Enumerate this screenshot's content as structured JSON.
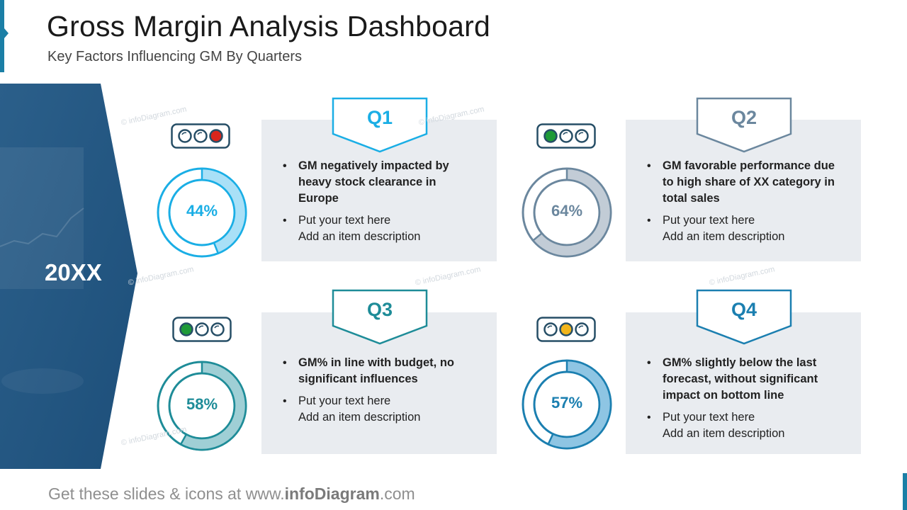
{
  "header": {
    "title": "Gross Margin Analysis Dashboard",
    "subtitle": "Key Factors Influencing  GM By Quarters"
  },
  "left_panel": {
    "year": "20XX"
  },
  "quarters": [
    {
      "tab": "Q1",
      "percent": 44,
      "percent_label": "44%",
      "color": "#1aaee5",
      "light_color": "#a9e0f7",
      "lights": [
        "off",
        "off",
        "red"
      ],
      "bullet_main": "GM negatively impacted by heavy stock clearance in Europe",
      "bullet_text": "Put your text here",
      "bullet_desc": "Add an item description"
    },
    {
      "tab": "Q2",
      "percent": 64,
      "percent_label": "64%",
      "color": "#6b879e",
      "light_color": "#c2ccd6",
      "lights": [
        "green",
        "off",
        "off"
      ],
      "bullet_main": "GM favorable performance due to high share of XX category in total sales",
      "bullet_text": "Put your text here",
      "bullet_desc": "Add an item description"
    },
    {
      "tab": "Q3",
      "percent": 58,
      "percent_label": "58%",
      "color": "#1e8c98",
      "light_color": "#9fcfd5",
      "lights": [
        "green",
        "off",
        "off"
      ],
      "bullet_main": "GM% in line with budget, no significant influences",
      "bullet_text": "Put your text here",
      "bullet_desc": "Add an item description"
    },
    {
      "tab": "Q4",
      "percent": 57,
      "percent_label": "57%",
      "color": "#1b7fb0",
      "light_color": "#8ec5e3",
      "lights": [
        "off",
        "yellow",
        "off"
      ],
      "bullet_main": "GM% slightly below the last forecast, without significant impact on bottom line",
      "bullet_text": "Put your text here",
      "bullet_desc": "Add an item description"
    }
  ],
  "footer": {
    "prefix": "Get these slides & icons at www.",
    "brand": "infoDiagram",
    "suffix": ".com"
  },
  "watermark": "© infoDiagram.com",
  "colors": {
    "frame": "#264e66",
    "red": "#d9261c",
    "green": "#1f9a38",
    "yellow": "#f2b51b",
    "panel": "#1f5a86"
  }
}
